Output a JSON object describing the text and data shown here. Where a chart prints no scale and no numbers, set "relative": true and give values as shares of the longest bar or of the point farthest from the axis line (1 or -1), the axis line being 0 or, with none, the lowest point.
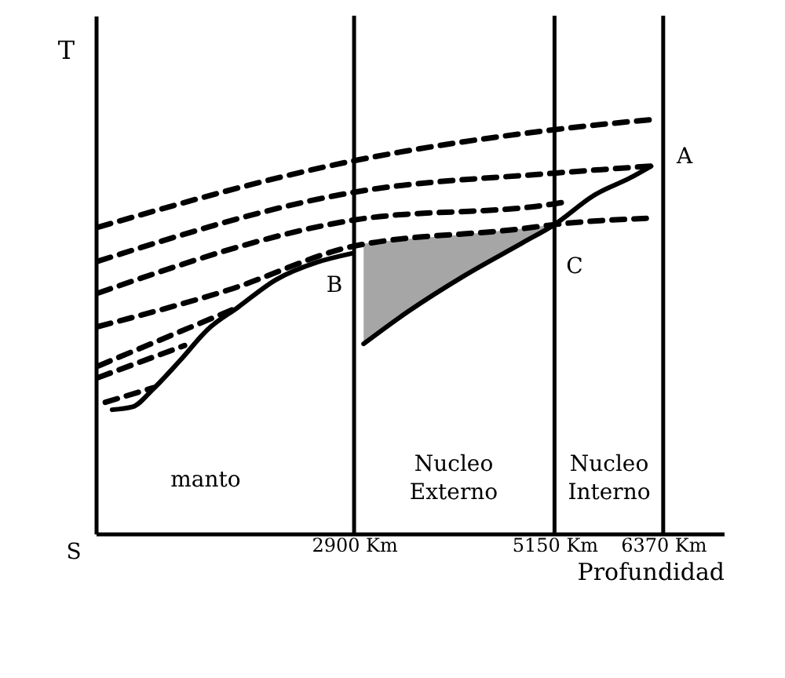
{
  "chart_data": {
    "type": "line",
    "xlabel": "Profundidad",
    "ylabel": "T",
    "relative": true,
    "xlim": [
      0,
      7050
    ],
    "xticks": [
      {
        "value": 2900,
        "label": "2900 Km"
      },
      {
        "value": 5150,
        "label": "5150 Km"
      },
      {
        "value": 6370,
        "label": "6370 Km"
      }
    ],
    "series": [
      {
        "color": "#000000",
        "line_style": "dashed",
        "x": [
          31,
          2900,
          5150,
          6274
        ],
        "values": [
          0.74,
          0.9,
          0.975,
          1
        ]
      },
      {
        "color": "#000000",
        "line_style": "dashed",
        "x": [
          31,
          2900,
          5150,
          6234
        ],
        "values": [
          0.658,
          0.824,
          0.87,
          0.887
        ]
      },
      {
        "color": "#000000",
        "line_style": "dashed",
        "x": [
          31,
          2900,
          5150,
          5326
        ],
        "values": [
          0.581,
          0.757,
          0.796,
          0.803
        ]
      },
      {
        "color": "#000000",
        "line_style": "dashed",
        "x": [
          31,
          1488,
          2900,
          4784,
          5150,
          6180
        ],
        "values": [
          0.5,
          0.588,
          0.694,
          0.736,
          0.746,
          0.761
        ]
      },
      {
        "color": "#000000",
        "line_style": "dashed",
        "x": [
          31,
          1595
        ],
        "values": [
          0.405,
          0.546
        ]
      },
      {
        "color": "#000000",
        "line_style": "dashed",
        "x": [
          31,
          997
        ],
        "values": [
          0.377,
          0.454
        ]
      },
      {
        "color": "#000000",
        "line_style": "dashed",
        "x": [
          107,
          644
        ],
        "values": [
          0.317,
          0.352
        ]
      },
      {
        "color": "#000000",
        "line_style": "solid",
        "x": [
          184,
          414,
          644,
          951,
          1258,
          1595,
          2025,
          2485,
          2868
        ],
        "values": [
          0.299,
          0.306,
          0.349,
          0.419,
          0.493,
          0.546,
          0.613,
          0.655,
          0.676
        ]
      },
      {
        "color": "#000000",
        "line_style": "solid",
        "x": [
          3007,
          3499,
          4141,
          4784,
          5150,
          5597,
          6003,
          6234
        ],
        "values": [
          0.458,
          0.535,
          0.623,
          0.701,
          0.746,
          0.817,
          0.859,
          0.887
        ],
        "lower": [
          0.458,
          0.535,
          0.623,
          0.701,
          0.746,
          null,
          null,
          null
        ],
        "upper": [
          0.7,
          0.711,
          0.722,
          0.736,
          0.746,
          null,
          null,
          null
        ]
      }
    ],
    "ref_lines": [
      {
        "axis": "x",
        "value": 2900
      },
      {
        "axis": "x",
        "value": 5150
      },
      {
        "axis": "x",
        "value": 6370
      }
    ],
    "annotations": [
      "S",
      "B",
      "C",
      "A",
      "manto",
      "Nucleo\nExterno",
      "Nucleo\nInterno"
    ]
  }
}
